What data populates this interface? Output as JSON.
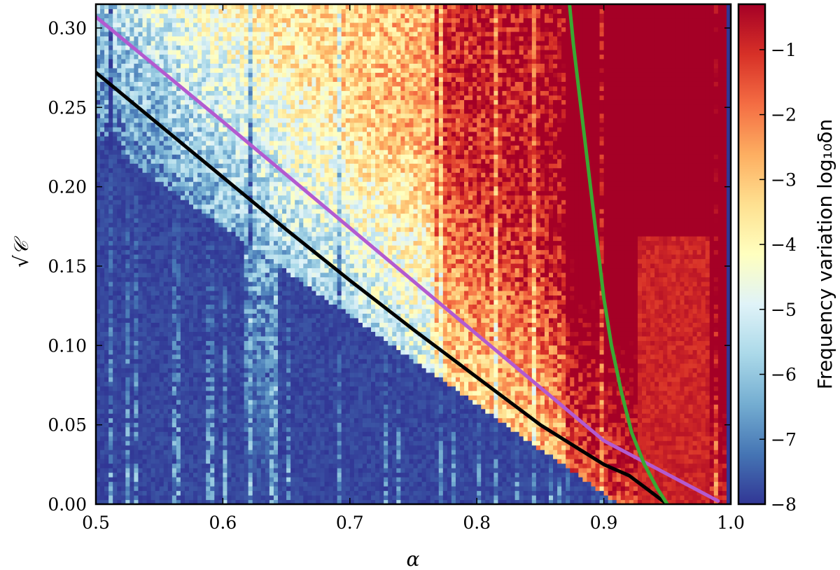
{
  "chart_data": {
    "type": "heatmap",
    "title": "",
    "xlabel": "α",
    "ylabel": "√𝒞",
    "xlim": [
      0.5,
      1.0
    ],
    "ylim": [
      0.0,
      0.315
    ],
    "x_ticks": [
      0.5,
      0.6,
      0.7,
      0.8,
      0.9,
      1.0
    ],
    "x_tick_labels": [
      "0.5",
      "0.6",
      "0.7",
      "0.8",
      "0.9",
      "1.0"
    ],
    "y_ticks": [
      0.0,
      0.05,
      0.1,
      0.15,
      0.2,
      0.25,
      0.3
    ],
    "y_tick_labels": [
      "0.00",
      "0.05",
      "0.10",
      "0.15",
      "0.20",
      "0.25",
      "0.30"
    ],
    "colorbar": {
      "label": "Frequency variation log₁₀δn",
      "range": [
        -8,
        -0.3
      ],
      "ticks": [
        -8,
        -7,
        -6,
        -5,
        -4,
        -3,
        -2,
        -1
      ],
      "tick_labels": [
        "−8",
        "−7",
        "−6",
        "−5",
        "−4",
        "−3",
        "−2",
        "−1"
      ],
      "colormap": "RdYlBu_r"
    },
    "grid": false,
    "heatmap_description_levels": {
      "low_value": -8,
      "high_value": -0.3
    },
    "series": [
      {
        "color": "#b35ad0",
        "x": [
          0.5,
          0.6,
          0.7,
          0.8,
          0.9,
          0.99
        ],
        "y": [
          0.307,
          0.241,
          0.174,
          0.107,
          0.04,
          0.002
        ]
      },
      {
        "color": "#000000",
        "x": [
          0.5,
          0.55,
          0.6,
          0.65,
          0.7,
          0.75,
          0.8,
          0.85,
          0.88,
          0.9,
          0.92,
          0.935,
          0.945,
          0.95
        ],
        "y": [
          0.272,
          0.239,
          0.206,
          0.173,
          0.141,
          0.11,
          0.08,
          0.05,
          0.035,
          0.025,
          0.018,
          0.009,
          0.003,
          0.0
        ]
      },
      {
        "color": "#3aa832",
        "x": [
          0.873,
          0.876,
          0.882,
          0.888,
          0.894,
          0.9,
          0.906,
          0.914,
          0.922,
          0.932,
          0.942,
          0.95
        ],
        "y": [
          0.315,
          0.29,
          0.25,
          0.21,
          0.17,
          0.13,
          0.1,
          0.07,
          0.045,
          0.025,
          0.01,
          0.0
        ]
      }
    ]
  }
}
